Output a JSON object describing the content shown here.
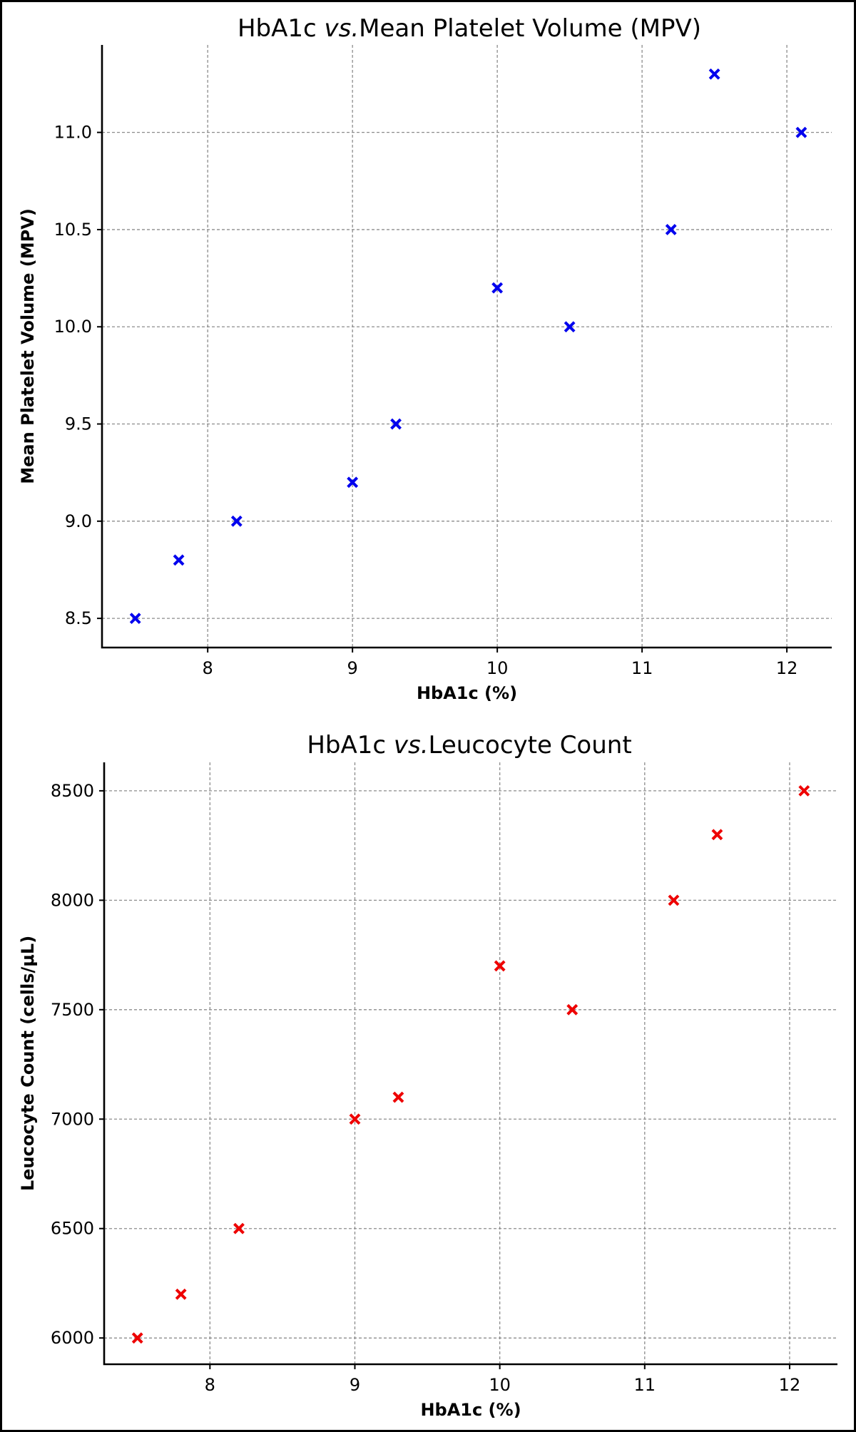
{
  "chart_data": [
    {
      "type": "scatter",
      "title_prefix": "HbA1c",
      "title_vs": "vs.",
      "title_suffix": "Mean Platelet Volume (MPV)",
      "xlabel": "HbA1c (%)",
      "ylabel": "Mean Platelet Volume (MPV)",
      "marker": "x",
      "color": "#0000ee",
      "xlim": [
        7.27,
        12.31
      ],
      "ylim": [
        8.35,
        11.45
      ],
      "xticks": [
        8,
        9,
        10,
        11,
        12
      ],
      "xtick_labels": [
        "8",
        "9",
        "10",
        "11",
        "12"
      ],
      "yticks": [
        8.5,
        9.0,
        9.5,
        10.0,
        10.5,
        11.0
      ],
      "ytick_labels": [
        "8.5",
        "9.0",
        "9.5",
        "10.0",
        "10.5",
        "11.0"
      ],
      "grid": true,
      "x": [
        7.5,
        7.8,
        8.2,
        9.0,
        9.3,
        10.0,
        10.5,
        11.2,
        11.5,
        12.1
      ],
      "y": [
        8.5,
        8.8,
        9.0,
        9.2,
        9.5,
        10.2,
        10.0,
        10.5,
        11.3,
        11.0
      ]
    },
    {
      "type": "scatter",
      "title_prefix": "HbA1c",
      "title_vs": "vs.",
      "title_suffix": "Leucocyte Count",
      "xlabel": "HbA1c (%)",
      "ylabel": "Leucocyte Count (cells/μL)",
      "marker": "x",
      "color": "#ee0000",
      "xlim": [
        7.27,
        12.33
      ],
      "ylim": [
        5880,
        8630
      ],
      "xticks": [
        8,
        9,
        10,
        11,
        12
      ],
      "xtick_labels": [
        "8",
        "9",
        "10",
        "11",
        "12"
      ],
      "yticks": [
        6000,
        6500,
        7000,
        7500,
        8000,
        8500
      ],
      "ytick_labels": [
        "6000",
        "6500",
        "7000",
        "7500",
        "8000",
        "8500"
      ],
      "grid": true,
      "x": [
        7.5,
        7.8,
        8.2,
        9.0,
        9.3,
        10.0,
        10.5,
        11.2,
        11.5,
        12.1
      ],
      "y": [
        6000,
        6200,
        6500,
        7000,
        7100,
        7700,
        7500,
        8000,
        8300,
        8500
      ]
    }
  ]
}
